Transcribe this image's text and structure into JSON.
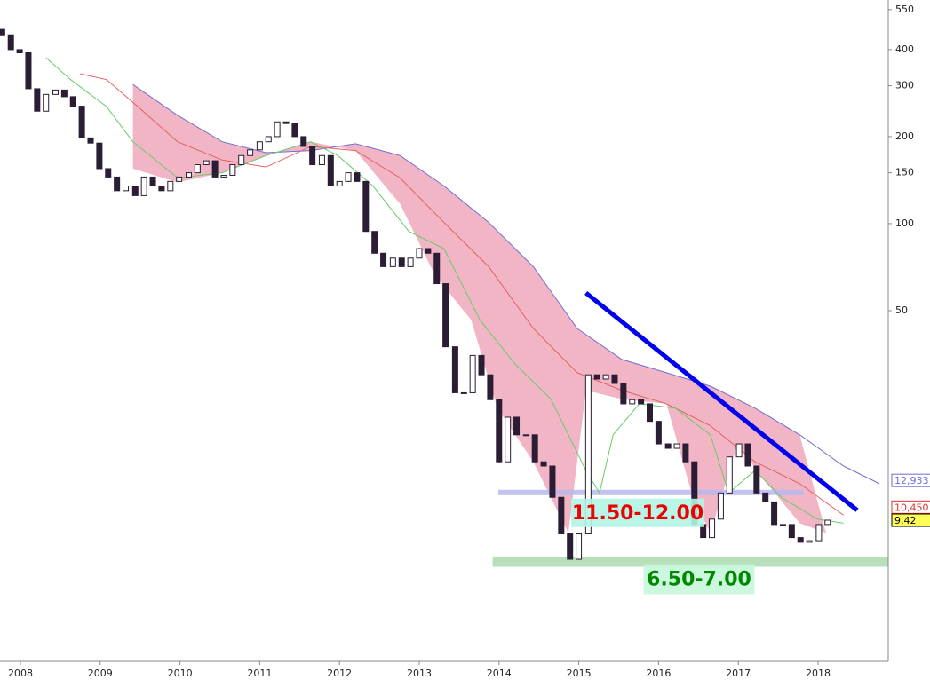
{
  "chart_data": {
    "type": "candlestick",
    "log_scale": true,
    "xlim": [
      2007.744,
      2018.88
    ],
    "xticks": [
      2008,
      2009,
      2010,
      2011,
      2012,
      2013,
      2014,
      2015,
      2016,
      2017,
      2018
    ],
    "ylim": [
      3.06,
      594
    ],
    "yticks": [
      550,
      400,
      300,
      200,
      150,
      100,
      50
    ],
    "candles": {
      "up_color": "#ffffff",
      "down_color": "#2b1d33",
      "edge_color": "#2b1d33",
      "x": [
        2007.77,
        2007.88,
        2007.99,
        2008.1,
        2008.21,
        2008.32,
        2008.44,
        2008.55,
        2008.66,
        2008.77,
        2008.88,
        2008.99,
        2009.1,
        2009.21,
        2009.32,
        2009.44,
        2009.55,
        2009.66,
        2009.77,
        2009.88,
        2009.99,
        2010.11,
        2010.22,
        2010.33,
        2010.44,
        2010.55,
        2010.66,
        2010.77,
        2010.88,
        2011.0,
        2011.11,
        2011.22,
        2011.33,
        2011.44,
        2011.55,
        2011.66,
        2011.78,
        2011.89,
        2012.0,
        2012.11,
        2012.22,
        2012.33,
        2012.44,
        2012.55,
        2012.67,
        2012.78,
        2012.89,
        2013.0,
        2013.11,
        2013.22,
        2013.33,
        2013.45,
        2013.56,
        2013.67,
        2013.78,
        2013.89,
        2014.0,
        2014.11,
        2014.22,
        2014.34,
        2014.45,
        2014.56,
        2014.67,
        2014.78,
        2014.89,
        2015.0,
        2015.12,
        2015.23,
        2015.34,
        2015.45,
        2015.56,
        2015.67,
        2015.78,
        2015.89,
        2016.0,
        2016.12,
        2016.23,
        2016.34,
        2016.45,
        2016.56,
        2016.67,
        2016.78,
        2016.89,
        2017.01,
        2017.12,
        2017.23,
        2017.34,
        2017.45,
        2017.56,
        2017.67,
        2017.78,
        2017.89,
        2018.01,
        2018.12
      ],
      "open": [
        470,
        450,
        400,
        390,
        293,
        245,
        280,
        290,
        275,
        255,
        198,
        190,
        155,
        145,
        130,
        135,
        125,
        145,
        135,
        130,
        140,
        145,
        150,
        160,
        165,
        145,
        147,
        160,
        172,
        180,
        192,
        200,
        225,
        222,
        200,
        185,
        160,
        172,
        135,
        140,
        150,
        140,
        94,
        79,
        71,
        76,
        71,
        76,
        82,
        79,
        62,
        37.5,
        26,
        26,
        35,
        30,
        24.6,
        15,
        21.4,
        18.6,
        18.6,
        15,
        14.5,
        11.3,
        8.5,
        6.9,
        8.5,
        30,
        29,
        30,
        28,
        23.8,
        24.6,
        23.8,
        20.7,
        17.3,
        16.7,
        17.3,
        15,
        9.1,
        8.2,
        9.5,
        11.7,
        15.6,
        17.3,
        14.5,
        11.7,
        10.9,
        9.1,
        9.1,
        8.2,
        7.9,
        8.0,
        9.1
      ],
      "close": [
        450,
        400,
        390,
        293,
        245,
        280,
        290,
        275,
        255,
        198,
        190,
        155,
        145,
        130,
        135,
        125,
        145,
        135,
        130,
        140,
        145,
        150,
        160,
        165,
        145,
        147,
        160,
        172,
        180,
        192,
        200,
        225,
        222,
        200,
        185,
        160,
        172,
        135,
        140,
        150,
        140,
        94,
        79,
        71,
        76,
        71,
        76,
        82,
        79,
        62,
        37.5,
        26,
        26,
        35,
        30,
        24.6,
        15,
        21.4,
        18.6,
        18.6,
        15,
        14.5,
        11.3,
        8.5,
        6.9,
        8.5,
        30,
        29,
        30,
        28,
        23.8,
        24.6,
        23.8,
        20.7,
        17.3,
        16.7,
        17.3,
        15,
        9.1,
        8.2,
        9.5,
        11.7,
        15.6,
        17.3,
        14.5,
        11.7,
        10.9,
        9.1,
        9.1,
        8.2,
        7.9,
        8.0,
        9.1,
        9.42
      ]
    },
    "series": [
      {
        "color": "#7070d0",
        "fill_color": "#f2b5c6",
        "x": [
          2009.41,
          2009.97,
          2010.53,
          2011.08,
          2011.64,
          2012.2,
          2012.76,
          2013.31,
          2013.87,
          2014.43,
          2014.98,
          2015.54,
          2016.1,
          2016.65,
          2017.21,
          2017.77,
          2018.32,
          2018.77
        ],
        "values": [
          303,
          237,
          192,
          176,
          179,
          189,
          172,
          135,
          101,
          71,
          43.4,
          33.9,
          30.5,
          27.4,
          23.0,
          18.6,
          14.5,
          12.6
        ]
      },
      {
        "color": "#e06060",
        "x": [
          2008.75,
          2009.08,
          2009.41,
          2009.97,
          2010.53,
          2011.08,
          2011.64,
          2012.2,
          2012.76,
          2013.31,
          2013.87,
          2014.43,
          2014.98,
          2015.54,
          2016.1,
          2016.65,
          2017.21,
          2017.77,
          2018.32
        ],
        "values": [
          330,
          315,
          263,
          192,
          166,
          157,
          185,
          179,
          144,
          101,
          71,
          43.4,
          30.5,
          26.5,
          23.8,
          20.0,
          15.0,
          12.6,
          9.8
        ]
      },
      {
        "color": "#66cc66",
        "x": [
          2008.32,
          2008.63,
          2009.08,
          2009.41,
          2009.97,
          2010.53,
          2011.08,
          2011.64,
          2011.98,
          2012.42,
          2012.87,
          2013.31,
          2013.76,
          2014.2,
          2014.65,
          2015.09,
          2015.26,
          2015.43,
          2015.76,
          2016.21,
          2016.65,
          2016.88,
          2017.21,
          2017.54,
          2017.99,
          2018.32
        ],
        "values": [
          375,
          315,
          254,
          192,
          144,
          150,
          172,
          192,
          172,
          135,
          94,
          82,
          46.5,
          32.7,
          24.7,
          14.0,
          11.7,
          18.6,
          23.8,
          23.0,
          18.6,
          11.7,
          14.0,
          11.3,
          9.5,
          9.2
        ]
      }
    ],
    "fill_lower": {
      "x": [
        2009.41,
        2009.97,
        2010.53,
        2011.08,
        2011.64,
        2012.2,
        2012.76,
        2013.2,
        2013.65,
        2013.98,
        2014.43,
        2014.87,
        2015.09,
        2015.54,
        2016.1,
        2016.43,
        2016.65,
        2016.99,
        2017.32,
        2017.77,
        2018.1
      ],
      "values": [
        155,
        139,
        150,
        172,
        192,
        179,
        117,
        66,
        46.5,
        23.0,
        15.0,
        8.5,
        26.5,
        24.7,
        23.8,
        11.3,
        8.5,
        17.3,
        13.0,
        9.2,
        8.5
      ]
    },
    "trend_line": {
      "color": "#0000ee",
      "x": [
        2015.09,
        2018.49
      ],
      "values": [
        57.6,
        10.2
      ]
    },
    "zones": [
      {
        "label": "11.50-12.00",
        "range": [
          11.5,
          12.0
        ],
        "x": [
          2013.99,
          2017.82
        ],
        "color": "#b8b8f0",
        "label_color": "#ee0000",
        "label_background": "#b3f5e6"
      },
      {
        "label": "6.50-7.00",
        "range": [
          6.5,
          7.0
        ],
        "x": [
          2013.92,
          2018.88
        ],
        "color": "#a9d9ae",
        "label_color": "#008800",
        "label_background": "#c6f7da"
      }
    ],
    "price_tags": [
      {
        "value": 12.933,
        "label": "12,933",
        "color": "#6b6bd6",
        "background": "#ffffff"
      },
      {
        "value": 10.45,
        "label": "10,450",
        "color": "#e03030",
        "background": "#ffffff"
      },
      {
        "value": 9.4181,
        "label": "9,4181",
        "color": "#44aa44",
        "background": "#ffffff"
      },
      {
        "value": 9.42,
        "label": "9,42",
        "color": "#000000",
        "background": "#ffff55"
      }
    ]
  }
}
